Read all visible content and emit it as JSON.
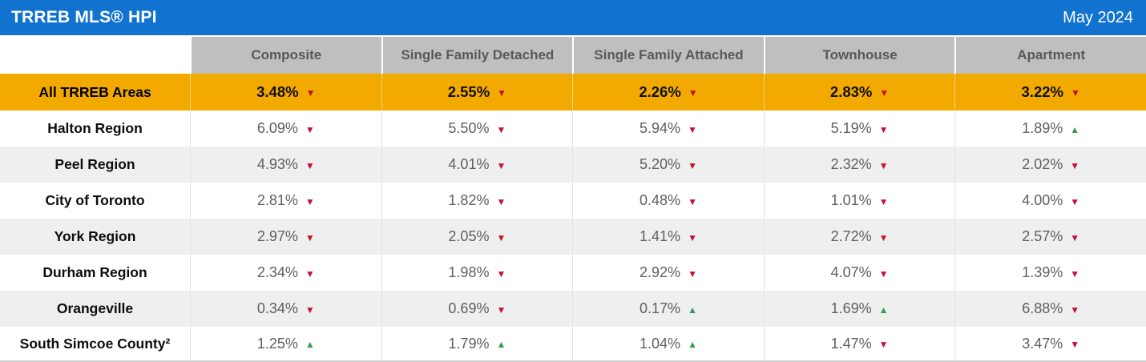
{
  "colors": {
    "header_blue": "#1172D0",
    "header_gray": "#BFBFBF",
    "highlight_orange": "#F2A900",
    "down_red": "#C8102E",
    "up_green": "#2E9E4F"
  },
  "chart_data": {
    "type": "table",
    "title": "TRREB MLS® HPI",
    "period": "May 2024",
    "legend": "triangle-down = year-over-year decrease (red), triangle-up = increase (green)",
    "columns": [
      "Composite",
      "Single Family Detached",
      "Single Family Attached",
      "Townhouse",
      "Apartment"
    ],
    "rows": [
      {
        "region": "All TRREB Areas",
        "highlight": true,
        "cells": [
          {
            "value": "3.48%",
            "trend": "down"
          },
          {
            "value": "2.55%",
            "trend": "down"
          },
          {
            "value": "2.26%",
            "trend": "down"
          },
          {
            "value": "2.83%",
            "trend": "down"
          },
          {
            "value": "3.22%",
            "trend": "down"
          }
        ]
      },
      {
        "region": "Halton Region",
        "cells": [
          {
            "value": "6.09%",
            "trend": "down"
          },
          {
            "value": "5.50%",
            "trend": "down"
          },
          {
            "value": "5.94%",
            "trend": "down"
          },
          {
            "value": "5.19%",
            "trend": "down"
          },
          {
            "value": "1.89%",
            "trend": "up"
          }
        ]
      },
      {
        "region": "Peel Region",
        "cells": [
          {
            "value": "4.93%",
            "trend": "down"
          },
          {
            "value": "4.01%",
            "trend": "down"
          },
          {
            "value": "5.20%",
            "trend": "down"
          },
          {
            "value": "2.32%",
            "trend": "down"
          },
          {
            "value": "2.02%",
            "trend": "down"
          }
        ]
      },
      {
        "region": "City of Toronto",
        "cells": [
          {
            "value": "2.81%",
            "trend": "down"
          },
          {
            "value": "1.82%",
            "trend": "down"
          },
          {
            "value": "0.48%",
            "trend": "down"
          },
          {
            "value": "1.01%",
            "trend": "down"
          },
          {
            "value": "4.00%",
            "trend": "down"
          }
        ]
      },
      {
        "region": "York Region",
        "cells": [
          {
            "value": "2.97%",
            "trend": "down"
          },
          {
            "value": "2.05%",
            "trend": "down"
          },
          {
            "value": "1.41%",
            "trend": "down"
          },
          {
            "value": "2.72%",
            "trend": "down"
          },
          {
            "value": "2.57%",
            "trend": "down"
          }
        ]
      },
      {
        "region": "Durham Region",
        "cells": [
          {
            "value": "2.34%",
            "trend": "down"
          },
          {
            "value": "1.98%",
            "trend": "down"
          },
          {
            "value": "2.92%",
            "trend": "down"
          },
          {
            "value": "4.07%",
            "trend": "down"
          },
          {
            "value": "1.39%",
            "trend": "down"
          }
        ]
      },
      {
        "region": "Orangeville",
        "cells": [
          {
            "value": "0.34%",
            "trend": "down"
          },
          {
            "value": "0.69%",
            "trend": "down"
          },
          {
            "value": "0.17%",
            "trend": "up"
          },
          {
            "value": "1.69%",
            "trend": "up"
          },
          {
            "value": "6.88%",
            "trend": "down"
          }
        ]
      },
      {
        "region": "South Simcoe County²",
        "cells": [
          {
            "value": "1.25%",
            "trend": "up"
          },
          {
            "value": "1.79%",
            "trend": "up"
          },
          {
            "value": "1.04%",
            "trend": "up"
          },
          {
            "value": "1.47%",
            "trend": "down"
          },
          {
            "value": "3.47%",
            "trend": "down"
          }
        ]
      }
    ]
  }
}
